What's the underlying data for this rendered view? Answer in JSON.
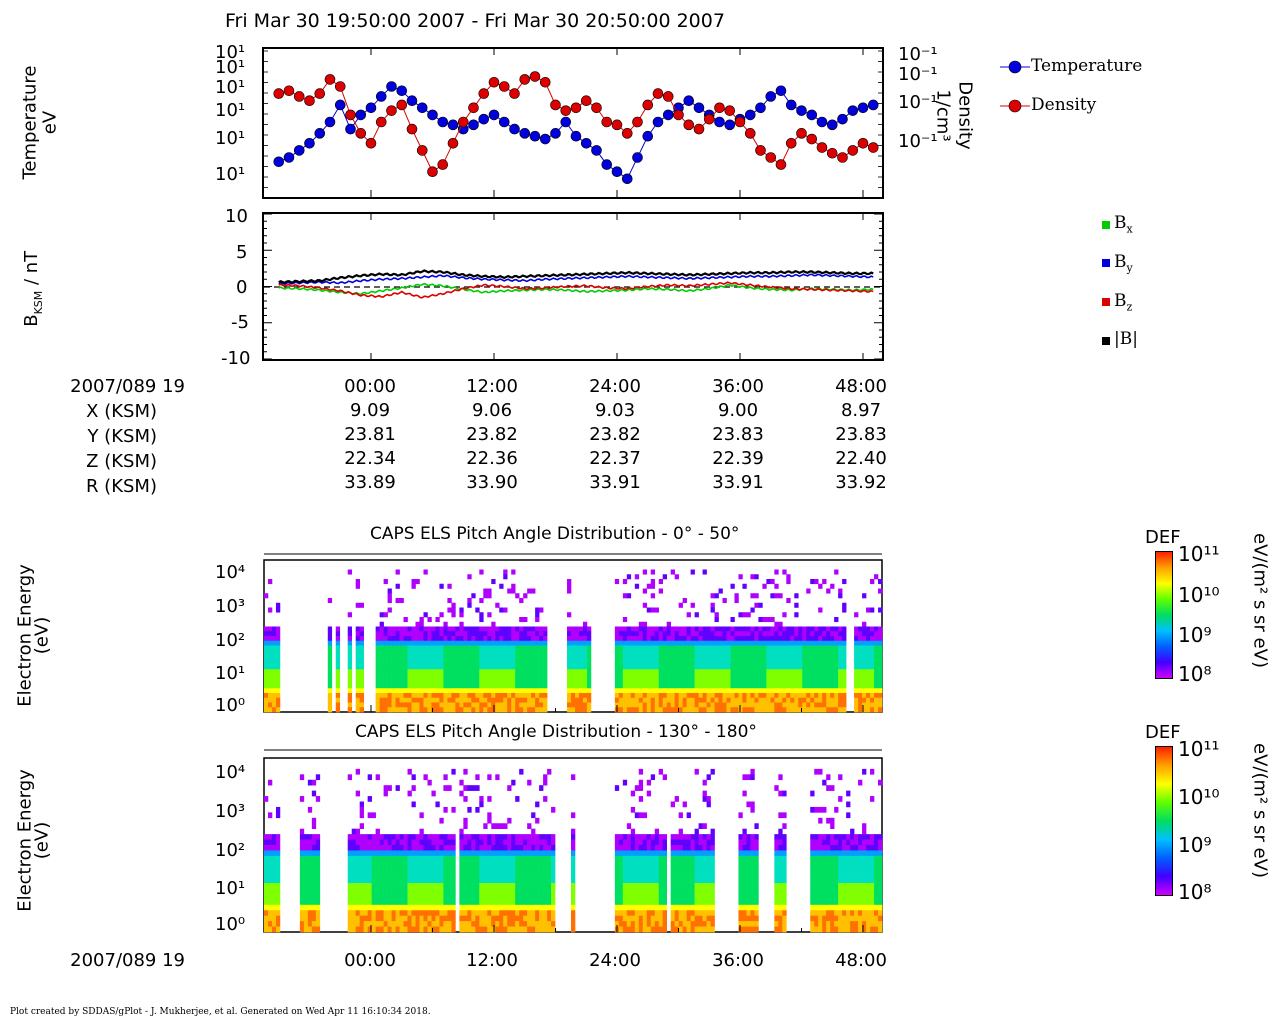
{
  "header": {
    "title": "Fri Mar 30 19:50:00 2007 - Fri Mar 30 20:50:00 2007"
  },
  "panel1": {
    "ylabel_left_line1": "Temperature",
    "ylabel_left_line2": "eV",
    "ylabel_right_line1": "Density",
    "ylabel_right_line2": "1/cm³",
    "left_ticks": [
      "10¹",
      "10¹",
      "10¹",
      "10¹",
      "10¹",
      "10¹"
    ],
    "right_ticks": [
      "10⁻¹",
      "10⁻¹",
      "10⁻¹",
      "10⁻¹"
    ],
    "legend": [
      "Temperature",
      "Density"
    ]
  },
  "panel2": {
    "ylabel": "BKSM / nT",
    "yticks": [
      "10",
      "5",
      "0",
      "-5",
      "-10"
    ],
    "legend": [
      "Bx",
      "By",
      "Bz",
      "|B|"
    ]
  },
  "ephemeris": {
    "row_labels": [
      "2007/089 19",
      "X (KSM)",
      "Y (KSM)",
      "Z (KSM)",
      "R (KSM)"
    ],
    "columns": [
      {
        "time": "00:00",
        "x": "9.09",
        "y": "23.81",
        "z": "22.34",
        "r": "33.89"
      },
      {
        "time": "12:00",
        "x": "9.06",
        "y": "23.82",
        "z": "22.36",
        "r": "33.90"
      },
      {
        "time": "24:00",
        "x": "9.03",
        "y": "23.82",
        "z": "22.37",
        "r": "33.91"
      },
      {
        "time": "36:00",
        "x": "9.00",
        "y": "23.83",
        "z": "22.39",
        "r": "33.91"
      },
      {
        "time": "48:00",
        "x": "8.97",
        "y": "23.83",
        "z": "22.40",
        "r": "33.92"
      }
    ]
  },
  "spec1": {
    "title": "CAPS ELS Pitch Angle Distribution - 0° - 50°",
    "ylabel_line1": "Electron Energy",
    "ylabel_line2": "(eV)",
    "yticks": [
      "10⁴",
      "10³",
      "10²",
      "10¹",
      "10⁰"
    ],
    "cb_title": "DEF",
    "cb_ticks": [
      "10¹¹",
      "10¹⁰",
      "10⁹",
      "10⁸"
    ],
    "cb_unit": "eV/(m² s sr eV)"
  },
  "spec2": {
    "title": "CAPS ELS Pitch Angle Distribution - 130° - 180°",
    "ylabel_line1": "Electron Energy",
    "ylabel_line2": "(eV)",
    "yticks": [
      "10⁴",
      "10³",
      "10²",
      "10¹",
      "10⁰"
    ],
    "cb_title": "DEF",
    "cb_ticks": [
      "10¹¹",
      "10¹⁰",
      "10⁹",
      "10⁸"
    ],
    "cb_unit": "eV/(m² s sr eV)"
  },
  "bottom_axis": {
    "date_label": "2007/089 19",
    "ticks": [
      "00:00",
      "12:00",
      "24:00",
      "36:00",
      "48:00"
    ]
  },
  "footer": "Plot created by SDDAS/gPlot - J. Mukherjee, et al.  Generated on Wed Apr 11 16:10:34 2018.",
  "colors": {
    "temperature": "#0000dd",
    "density": "#dd0000",
    "bx": "#00cc00",
    "by": "#0000dd",
    "bz": "#dd0000",
    "btot": "#000000"
  },
  "chart_data": [
    {
      "type": "scatter",
      "title": "",
      "xlabel": "",
      "ylabel": "Temperature eV",
      "y2label": "Density 1/cm³",
      "x": [
        -9,
        -8,
        -7,
        -6,
        -5,
        -4,
        -3,
        -2,
        -1,
        0,
        1,
        2,
        3,
        4,
        5,
        6,
        7,
        8,
        9,
        10,
        11,
        12,
        13,
        14,
        15,
        16,
        17,
        18,
        19,
        20,
        21,
        22,
        23,
        24,
        25,
        26,
        27,
        28,
        29,
        30,
        31,
        32,
        33,
        34,
        35,
        36,
        37,
        38,
        39,
        40,
        41,
        42,
        43,
        44,
        45,
        46,
        47,
        48,
        49
      ],
      "series": [
        {
          "name": "Temperature",
          "values": [
            0.22,
            0.25,
            0.3,
            0.35,
            0.42,
            0.5,
            0.62,
            0.45,
            0.55,
            0.6,
            0.68,
            0.75,
            0.72,
            0.65,
            0.6,
            0.55,
            0.5,
            0.48,
            0.45,
            0.48,
            0.52,
            0.55,
            0.5,
            0.45,
            0.42,
            0.4,
            0.38,
            0.42,
            0.5,
            0.4,
            0.35,
            0.3,
            0.2,
            0.15,
            0.1,
            0.25,
            0.4,
            0.5,
            0.55,
            0.6,
            0.65,
            0.6,
            0.55,
            0.5,
            0.48,
            0.52,
            0.55,
            0.6,
            0.68,
            0.72,
            0.62,
            0.58,
            0.55,
            0.5,
            0.48,
            0.52,
            0.58,
            0.6,
            0.62
          ]
        },
        {
          "name": "Density",
          "values": [
            0.7,
            0.72,
            0.68,
            0.65,
            0.7,
            0.8,
            0.75,
            0.55,
            0.42,
            0.35,
            0.5,
            0.58,
            0.62,
            0.45,
            0.3,
            0.15,
            0.2,
            0.35,
            0.5,
            0.6,
            0.7,
            0.78,
            0.75,
            0.7,
            0.8,
            0.82,
            0.78,
            0.62,
            0.58,
            0.6,
            0.65,
            0.6,
            0.5,
            0.48,
            0.42,
            0.5,
            0.62,
            0.7,
            0.68,
            0.55,
            0.48,
            0.45,
            0.52,
            0.6,
            0.58,
            0.5,
            0.42,
            0.3,
            0.25,
            0.2,
            0.35,
            0.42,
            0.38,
            0.32,
            0.28,
            0.25,
            0.3,
            0.35,
            0.32
          ]
        }
      ]
    },
    {
      "type": "line",
      "title": "",
      "xlabel": "",
      "ylabel": "BKSM / nT",
      "ylim": [
        -10,
        10
      ],
      "x": [
        -9,
        -7,
        -5,
        -3,
        -1,
        1,
        3,
        5,
        7,
        9,
        11,
        13,
        15,
        17,
        19,
        21,
        23,
        25,
        27,
        29,
        31,
        33,
        35,
        37,
        39,
        41,
        43,
        45,
        47,
        49
      ],
      "series": [
        {
          "name": "Bx",
          "values": [
            -0.2,
            -0.3,
            -0.5,
            -0.8,
            -1.0,
            -0.6,
            -0.2,
            0.3,
            0.1,
            -0.4,
            -0.8,
            -0.6,
            -0.5,
            -0.4,
            -0.5,
            -0.7,
            -0.6,
            -0.5,
            -0.3,
            -0.4,
            -0.6,
            -0.3,
            0.2,
            -0.2,
            -0.4,
            -0.5,
            -0.3,
            -0.4,
            -0.5,
            -0.4
          ]
        },
        {
          "name": "By",
          "values": [
            0.4,
            0.5,
            0.6,
            0.5,
            0.8,
            1.0,
            1.1,
            1.3,
            1.5,
            1.2,
            1.0,
            0.9,
            0.8,
            1.0,
            1.1,
            1.2,
            1.3,
            1.4,
            1.3,
            1.2,
            1.1,
            1.2,
            1.3,
            1.4,
            1.4,
            1.5,
            1.6,
            1.5,
            1.4,
            1.3
          ]
        },
        {
          "name": "Bz",
          "values": [
            0.2,
            0.1,
            -0.2,
            -0.6,
            -1.2,
            -1.4,
            -0.8,
            -1.5,
            -1.0,
            -0.3,
            0.2,
            0.0,
            -0.3,
            -0.2,
            0.0,
            0.1,
            -0.2,
            -0.3,
            0.0,
            0.2,
            0.1,
            0.3,
            0.5,
            0.2,
            -0.1,
            -0.3,
            -0.4,
            -0.5,
            -0.6,
            -0.7
          ]
        },
        {
          "name": "|B|",
          "values": [
            0.6,
            0.7,
            0.8,
            1.2,
            1.5,
            1.7,
            1.6,
            2.1,
            2.0,
            1.6,
            1.4,
            1.3,
            1.4,
            1.5,
            1.6,
            1.7,
            1.8,
            1.9,
            1.8,
            1.7,
            1.6,
            1.7,
            1.8,
            1.9,
            1.9,
            2.0,
            2.0,
            1.9,
            1.8,
            1.8
          ]
        }
      ]
    },
    {
      "type": "heatmap",
      "title": "CAPS ELS Pitch Angle Distribution - 0° - 50°",
      "xlabel": "",
      "ylabel": "Electron Energy (eV)",
      "ylim": [
        "10⁰",
        "10⁴"
      ],
      "color_scale": [
        "10⁸",
        "10¹¹"
      ],
      "data_gaps_hours": [
        [
          -9,
          -4.5
        ],
        [
          -4.2,
          -3.5
        ],
        [
          -3.2,
          -2.5
        ],
        [
          -2.2,
          -1.5
        ],
        [
          -1,
          0.3
        ],
        [
          17,
          19
        ],
        [
          21.3,
          23.5
        ],
        [
          46,
          47
        ]
      ]
    },
    {
      "type": "heatmap",
      "title": "CAPS ELS Pitch Angle Distribution - 130° - 180°",
      "xlabel": "",
      "ylabel": "Electron Energy (eV)",
      "ylim": [
        "10⁰",
        "10⁴"
      ],
      "color_scale": [
        "10⁸",
        "10¹¹"
      ],
      "data_gaps_hours": [
        [
          -9,
          -7.3
        ],
        [
          -5.1,
          -2.6
        ],
        [
          8.1,
          8.5
        ],
        [
          17.6,
          19.5
        ],
        [
          19.9,
          23.5
        ],
        [
          28.5,
          29
        ],
        [
          33.5,
          35.5
        ],
        [
          37.5,
          39
        ],
        [
          40.5,
          42.5
        ]
      ]
    }
  ]
}
